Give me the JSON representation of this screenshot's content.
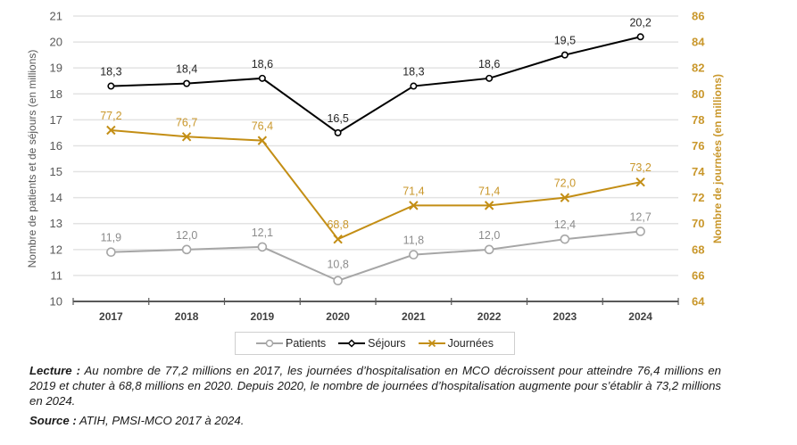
{
  "chart_data": {
    "type": "line",
    "title": "",
    "categories": [
      "2017",
      "2018",
      "2019",
      "2020",
      "2021",
      "2022",
      "2023",
      "2024"
    ],
    "series": [
      {
        "name": "Patients",
        "axis": "left",
        "color": "#a6a6a6",
        "marker": "circle",
        "values": [
          11.9,
          12.0,
          12.1,
          10.8,
          11.8,
          12.0,
          12.4,
          12.7
        ],
        "labels": [
          "11,9",
          "12,0",
          "12,1",
          "10,8",
          "11,8",
          "12,0",
          "12,4",
          "12,7"
        ]
      },
      {
        "name": "Séjours",
        "axis": "left",
        "color": "#000000",
        "marker": "diamond",
        "values": [
          18.3,
          18.4,
          18.6,
          16.5,
          18.3,
          18.6,
          19.5,
          20.2
        ],
        "labels": [
          "18,3",
          "18,4",
          "18,6",
          "16,5",
          "18,3",
          "18,6",
          "19,5",
          "20,2"
        ]
      },
      {
        "name": "Journées",
        "axis": "right",
        "color": "#c38e15",
        "marker": "x",
        "values": [
          77.2,
          76.7,
          76.4,
          68.8,
          71.4,
          71.4,
          72.0,
          73.2
        ],
        "labels": [
          "77,2",
          "76,7",
          "76,4",
          "68,8",
          "71,4",
          "71,4",
          "72,0",
          "73,2"
        ]
      }
    ],
    "ylabel_left": "Nombre de patients et de séjours (en millions)",
    "ylabel_right": "Nombre de journées (en millions)",
    "ylim_left": [
      10,
      21
    ],
    "yticks_left": [
      "10",
      "11",
      "12",
      "13",
      "14",
      "15",
      "16",
      "17",
      "18",
      "19",
      "20",
      "21"
    ],
    "ylim_right": [
      64,
      86
    ],
    "yticks_right": [
      "64",
      "66",
      "68",
      "70",
      "72",
      "74",
      "76",
      "78",
      "80",
      "82",
      "84",
      "86"
    ],
    "grid": true,
    "legend_position": "bottom"
  },
  "legend": {
    "patients": "Patients",
    "sejours": "Séjours",
    "journees": "Journées"
  },
  "note": {
    "lecture_label": "Lecture :",
    "lecture_text": " Au nombre de 77,2 millions en 2017, les journées d’hospitalisation en MCO décroissent pour atteindre 76,4 millions en 2019 et chuter à 68,8 millions en 2020. Depuis 2020, le nombre de journées d’hospitalisation augmente pour s’établir à 73,2 millions en 2024.",
    "source_label": "Source :",
    "source_text": " ATIH, PMSI-MCO 2017 à 2024."
  }
}
